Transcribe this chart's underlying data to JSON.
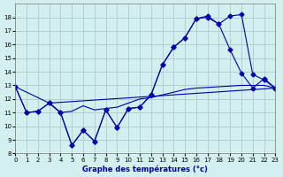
{
  "xlabel": "Graphe des températures (°c)",
  "background_color": "#d4efef",
  "grid_color": "#b0d0d0",
  "line_color": "#0000aa",
  "ylim": [
    8,
    19
  ],
  "xlim": [
    0,
    23
  ],
  "yticks": [
    8,
    9,
    10,
    11,
    12,
    13,
    14,
    15,
    16,
    17,
    18
  ],
  "xticks": [
    0,
    1,
    2,
    3,
    4,
    5,
    6,
    7,
    8,
    9,
    10,
    11,
    12,
    13,
    14,
    15,
    16,
    17,
    18,
    19,
    20,
    21,
    22,
    23
  ],
  "curve1_x": [
    0,
    1,
    2,
    3,
    4,
    5,
    6,
    7,
    8,
    9,
    10,
    11,
    12,
    13,
    14,
    15,
    16,
    17,
    18,
    19,
    20,
    21,
    22,
    23
  ],
  "curve1_y": [
    12.9,
    11.0,
    11.1,
    11.7,
    11.0,
    8.6,
    9.7,
    8.9,
    11.2,
    9.9,
    11.3,
    11.4,
    12.3,
    14.5,
    15.8,
    16.5,
    17.9,
    18.1,
    17.5,
    15.6,
    13.9,
    12.8,
    13.5,
    12.8
  ],
  "curve2_x": [
    0,
    1,
    2,
    3,
    4,
    5,
    6,
    7,
    8,
    9,
    10,
    11,
    12,
    13,
    14,
    15,
    16,
    17,
    18,
    19,
    20,
    21,
    22,
    23
  ],
  "curve2_y": [
    12.9,
    11.0,
    11.1,
    11.7,
    11.0,
    8.6,
    9.7,
    8.9,
    11.2,
    9.9,
    11.3,
    11.4,
    12.3,
    14.5,
    15.8,
    16.5,
    17.9,
    18.0,
    17.5,
    18.1,
    18.2,
    13.8,
    13.4,
    12.8
  ],
  "curve3_x": [
    3,
    4,
    5,
    6,
    7,
    8,
    9,
    10,
    11,
    12,
    13,
    14,
    15,
    16,
    17,
    18,
    19,
    20,
    21,
    22,
    23
  ],
  "curve3_y": [
    11.7,
    11.0,
    11.1,
    11.5,
    11.2,
    11.3,
    11.4,
    11.7,
    12.0,
    12.1,
    12.3,
    12.5,
    12.7,
    12.8,
    12.85,
    12.9,
    12.95,
    13.0,
    13.0,
    13.0,
    12.8
  ],
  "curve4_x": [
    0,
    3,
    23
  ],
  "curve4_y": [
    12.9,
    11.7,
    12.8
  ]
}
